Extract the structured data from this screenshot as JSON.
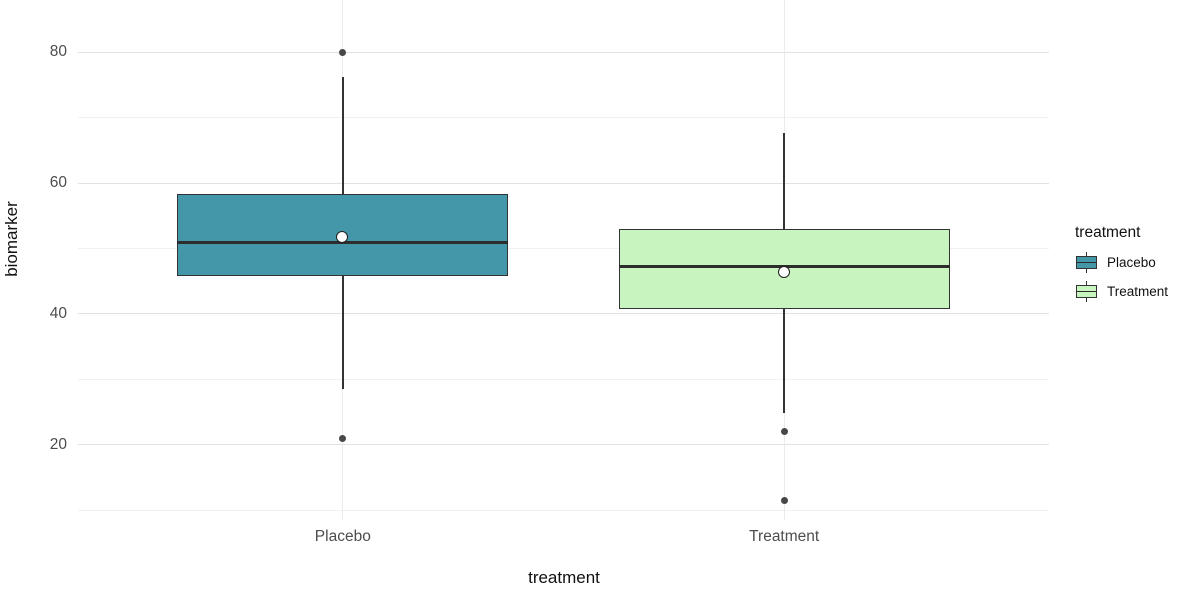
{
  "chart_data": {
    "type": "boxplot",
    "xlabel": "treatment",
    "ylabel": "biomarker",
    "ylim": [
      8.5,
      88
    ],
    "y_major_ticks": [
      20,
      40,
      60,
      80
    ],
    "y_minor_ticks": [
      10,
      30,
      50,
      70
    ],
    "grid": true,
    "categories": [
      "Placebo",
      "Treatment"
    ],
    "series": [
      {
        "name": "Placebo",
        "fill": "#4497a8",
        "whisker_low": 28.5,
        "q1": 45.8,
        "median": 51.0,
        "q3": 58.3,
        "whisker_high": 76.3,
        "mean": 51.6,
        "outliers": [
          80,
          21
        ]
      },
      {
        "name": "Treatment",
        "fill": "#c8f4c0",
        "whisker_low": 24.8,
        "q1": 40.8,
        "median": 47.2,
        "q3": 53.0,
        "whisker_high": 67.7,
        "mean": 46.3,
        "outliers": [
          22,
          11.5
        ]
      }
    ],
    "legend": {
      "title": "treatment",
      "position": "right",
      "entries": [
        {
          "label": "Placebo",
          "color": "#4497a8"
        },
        {
          "label": "Treatment",
          "color": "#c8f4c0"
        }
      ]
    }
  },
  "colors": {
    "box_border": "#333333",
    "median_line": "#2d2d2d",
    "outlier": "#474747",
    "grid_major": "#e2e2e2",
    "grid_minor": "#f1f1f1",
    "axis_text": "#4d4d4d",
    "background": "#ffffff"
  }
}
